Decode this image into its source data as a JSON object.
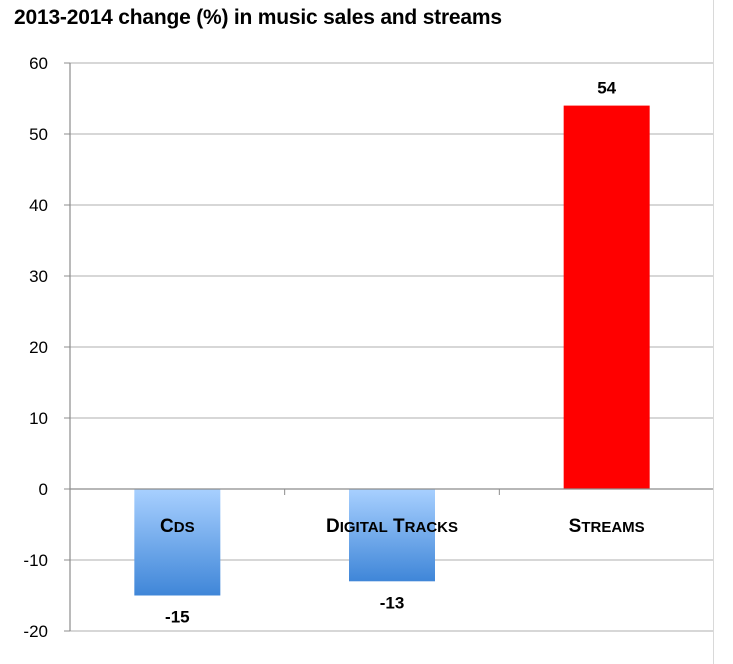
{
  "chart_data": {
    "type": "bar",
    "title": "2013-2014 change (%) in music sales and streams",
    "categories": [
      "CDs",
      "Digital Tracks",
      "Streams"
    ],
    "values": [
      -15,
      -13,
      54
    ],
    "data_labels": [
      "-15",
      "-13",
      "54"
    ],
    "bar_colors": [
      "#5a9be0",
      "#5a9be0",
      "#ff0000"
    ],
    "bar_gradient": [
      true,
      true,
      false
    ],
    "gradient_top": "#a8d0ff",
    "gradient_bottom": "#3f86d8",
    "ylim": [
      -20,
      60
    ],
    "yticks": [
      60,
      50,
      40,
      30,
      20,
      10,
      0,
      -10,
      -20
    ],
    "xlabel": "",
    "ylabel": "",
    "grid": true,
    "legend": "none"
  }
}
